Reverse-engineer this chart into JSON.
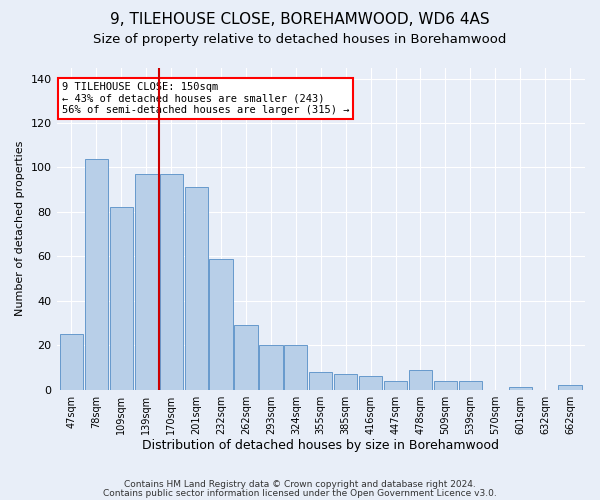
{
  "title": "9, TILEHOUSE CLOSE, BOREHAMWOOD, WD6 4AS",
  "subtitle": "Size of property relative to detached houses in Borehamwood",
  "xlabel": "Distribution of detached houses by size in Borehamwood",
  "ylabel": "Number of detached properties",
  "footer1": "Contains HM Land Registry data © Crown copyright and database right 2024.",
  "footer2": "Contains public sector information licensed under the Open Government Licence v3.0.",
  "annotation_line1": "9 TILEHOUSE CLOSE: 150sqm",
  "annotation_line2": "← 43% of detached houses are smaller (243)",
  "annotation_line3": "56% of semi-detached houses are larger (315) →",
  "bar_color": "#b8cfe8",
  "bar_edge_color": "#6699cc",
  "ref_line_color": "#cc0000",
  "bin_labels": [
    "47sqm",
    "78sqm",
    "109sqm",
    "139sqm",
    "170sqm",
    "201sqm",
    "232sqm",
    "262sqm",
    "293sqm",
    "324sqm",
    "355sqm",
    "385sqm",
    "416sqm",
    "447sqm",
    "478sqm",
    "509sqm",
    "539sqm",
    "570sqm",
    "601sqm",
    "632sqm",
    "662sqm"
  ],
  "bar_heights": [
    25,
    104,
    82,
    97,
    97,
    91,
    59,
    29,
    20,
    20,
    8,
    7,
    6,
    4,
    9,
    4,
    4,
    0,
    1,
    0,
    2
  ],
  "ylim": [
    0,
    145
  ],
  "yticks": [
    0,
    20,
    40,
    60,
    80,
    100,
    120,
    140
  ],
  "background_color": "#e8eef8",
  "plot_bg_color": "#e8eef8",
  "grid_color": "#ffffff",
  "title_fontsize": 11,
  "subtitle_fontsize": 9.5
}
